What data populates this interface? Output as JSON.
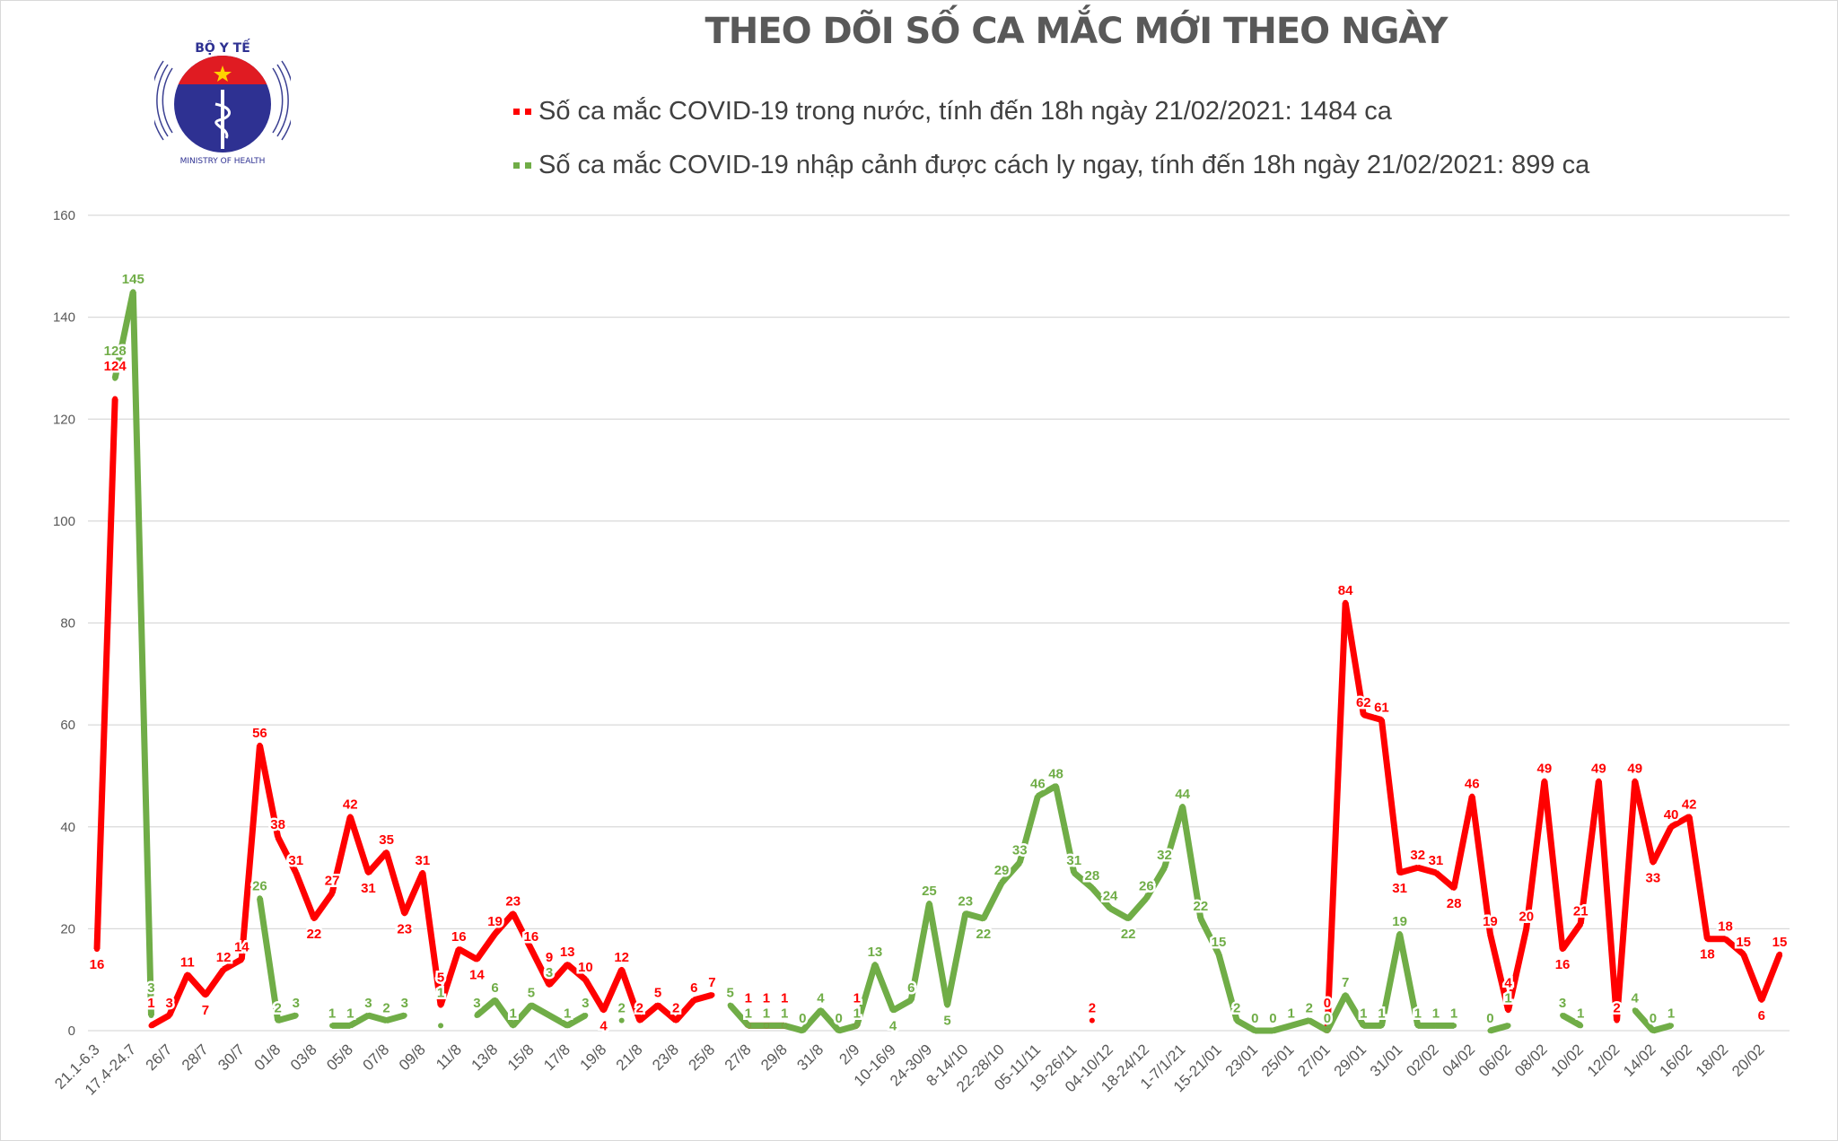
{
  "logo": {
    "text_top": "BỘ Y TẾ",
    "text_bottom": "MINISTRY OF HEALTH"
  },
  "colors": {
    "domestic": "#ff0000",
    "imported": "#70ad47",
    "grid": "#d9d9d9",
    "axis_text": "#595959"
  },
  "chart_data": {
    "type": "line",
    "title": "THEO DÕI SỐ CA MẮC MỚI THEO NGÀY",
    "legend_placement": "top",
    "grid": true,
    "ylim": [
      0,
      160
    ],
    "yticks": [
      0,
      20,
      40,
      60,
      80,
      100,
      120,
      140,
      160
    ],
    "categories": [
      "21.1-6.3",
      "",
      "17.4-24.7",
      "",
      "26/7",
      "",
      "28/7",
      "",
      "30/7",
      "",
      "01/8",
      "",
      "03/8",
      "",
      "05/8",
      "",
      "07/8",
      "",
      "09/8",
      "",
      "11/8",
      "",
      "13/8",
      "",
      "15/8",
      "",
      "17/8",
      "",
      "19/8",
      "",
      "21/8",
      "",
      "23/8",
      "",
      "25/8",
      "",
      "27/8",
      "",
      "29/8",
      "",
      "31/8",
      "",
      "2/9",
      "",
      "10-16/9",
      "",
      "24-30/9",
      "",
      "8-14/10",
      "",
      "22-28/10",
      "",
      "05-11/11",
      "",
      "19-26/11",
      "",
      "04-10/12",
      "",
      "18-24/12",
      "",
      "1-7/1/21",
      "",
      "15-21/01",
      "",
      "23/01",
      "",
      "25/01",
      "",
      "27/01",
      "",
      "29/01",
      "",
      "31/01",
      "",
      "02/02",
      "",
      "04/02",
      "",
      "06/02",
      "",
      "08/02",
      "",
      "10/02",
      "",
      "12/02",
      "",
      "14/02",
      "",
      "16/02",
      "",
      "18/02",
      "",
      "20/02",
      ""
    ],
    "series": [
      {
        "name": "Số ca mắc COVID-19 trong nước, tính đến 18h ngày 21/02/2021: 1484 ca",
        "color": "#ff0000",
        "values": [
          16,
          124,
          null,
          1,
          3,
          11,
          7,
          12,
          14,
          56,
          38,
          31,
          22,
          27,
          42,
          31,
          35,
          23,
          31,
          5,
          16,
          14,
          19,
          23,
          16,
          9,
          13,
          10,
          4,
          12,
          2,
          5,
          2,
          6,
          7,
          null,
          1,
          1,
          1,
          null,
          null,
          null,
          1,
          null,
          null,
          null,
          null,
          null,
          null,
          null,
          null,
          null,
          null,
          null,
          null,
          2,
          null,
          null,
          null,
          null,
          null,
          null,
          null,
          null,
          null,
          null,
          null,
          null,
          0,
          84,
          62,
          61,
          31,
          32,
          31,
          28,
          46,
          19,
          4,
          20,
          49,
          16,
          21,
          49,
          2,
          49,
          33,
          40,
          42,
          18,
          18,
          15,
          6,
          15
        ]
      },
      {
        "name": "Số ca mắc COVID-19 nhập cảnh được cách ly ngay, tính đến 18h ngày 21/02/2021: 899 ca",
        "color": "#70ad47",
        "values": [
          null,
          128,
          145,
          3,
          null,
          null,
          null,
          null,
          null,
          26,
          2,
          3,
          null,
          1,
          1,
          3,
          2,
          3,
          null,
          1,
          null,
          3,
          6,
          1,
          5,
          3,
          1,
          3,
          null,
          2,
          null,
          null,
          null,
          null,
          null,
          5,
          1,
          1,
          1,
          0,
          4,
          0,
          1,
          13,
          4,
          6,
          25,
          5,
          23,
          22,
          29,
          33,
          46,
          48,
          31,
          28,
          24,
          22,
          26,
          32,
          44,
          22,
          15,
          2,
          0,
          0,
          1,
          2,
          0,
          7,
          1,
          1,
          19,
          1,
          1,
          1,
          null,
          0,
          1,
          null,
          null,
          3,
          1,
          null,
          null,
          4,
          0,
          1,
          null,
          null,
          null,
          null,
          null,
          null
        ]
      }
    ]
  }
}
